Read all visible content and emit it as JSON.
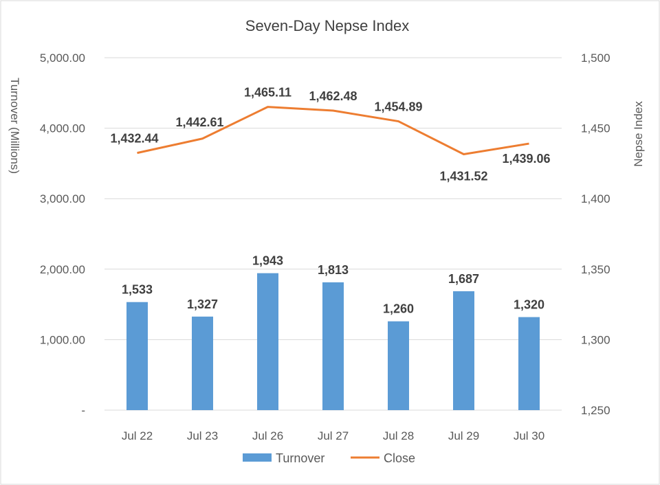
{
  "chart_data": {
    "type": "bar+line",
    "title": "Seven-Day Nepse Index",
    "categories": [
      "Jul 22",
      "Jul 23",
      "Jul 26",
      "Jul 27",
      "Jul 28",
      "Jul 29",
      "Jul 30"
    ],
    "series": [
      {
        "name": "Turnover",
        "type": "bar",
        "axis": "left",
        "values": [
          1533,
          1327,
          1943,
          1813,
          1260,
          1687,
          1320
        ],
        "labels": [
          "1,533",
          "1,327",
          "1,943",
          "1,813",
          "1,260",
          "1,687",
          "1,320"
        ],
        "color": "#5b9bd5"
      },
      {
        "name": "Close",
        "type": "line",
        "axis": "right",
        "values": [
          1432.44,
          1442.61,
          1465.11,
          1462.48,
          1454.89,
          1431.52,
          1439.06
        ],
        "labels": [
          "1,432.44",
          "1,442.61",
          "1,465.11",
          "1,462.48",
          "1,454.89",
          "1,431.52",
          "1,439.06"
        ],
        "color": "#ed7d31"
      }
    ],
    "ylabel_left": "Turnover (Millions)",
    "ylabel_right": "Nepse Index",
    "ylim_left": [
      0,
      5000
    ],
    "ylim_right": [
      1250,
      1500
    ],
    "yticks_left": [
      0,
      1000,
      2000,
      3000,
      4000,
      5000
    ],
    "ytick_labels_left": [
      "-",
      "1,000.00",
      "2,000.00",
      "3,000.00",
      "4,000.00",
      "5,000.00"
    ],
    "yticks_right": [
      1250,
      1300,
      1350,
      1400,
      1450,
      1500
    ],
    "ytick_labels_right": [
      "1,250",
      "1,300",
      "1,350",
      "1,400",
      "1,450",
      "1,500"
    ],
    "grid": true,
    "legend_position": "bottom-center",
    "legend": [
      "Turnover",
      "Close"
    ]
  }
}
